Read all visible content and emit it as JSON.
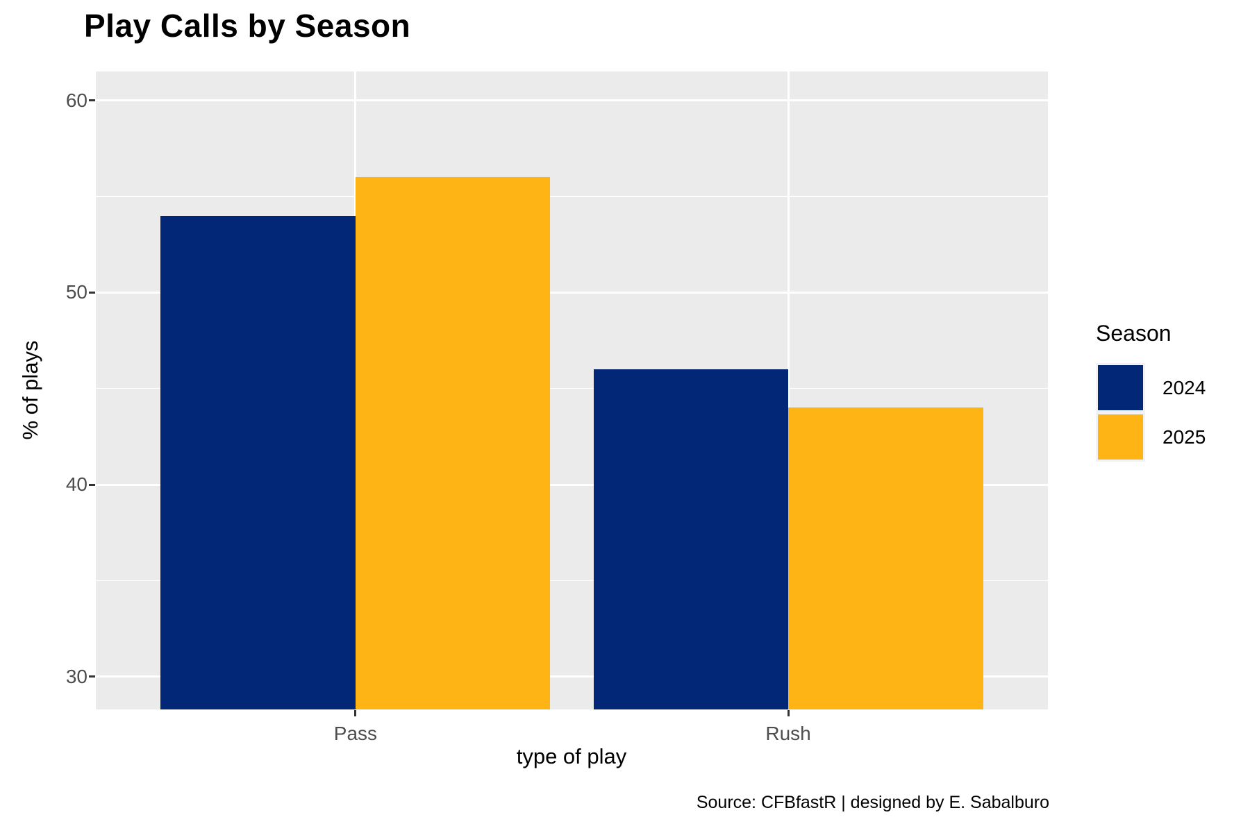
{
  "title": "Play Calls by Season",
  "caption": "Source: CFBfastR | designed by E. Sabalburo",
  "chart_data": {
    "type": "bar",
    "title": "Play Calls by Season",
    "xlabel": "type of play",
    "ylabel": "% of plays",
    "categories": [
      "Pass",
      "Rush"
    ],
    "series": [
      {
        "name": "2024",
        "color": "#022776",
        "values": [
          54,
          46
        ]
      },
      {
        "name": "2025",
        "color": "#FDB414",
        "values": [
          56,
          44
        ]
      }
    ],
    "ylim": [
      28.3,
      61.5
    ],
    "y_major_ticks": [
      30,
      40,
      50,
      60
    ],
    "y_minor_ticks": [
      35,
      45,
      55
    ],
    "bar_group_width": 0.9,
    "grid": true,
    "legend_title": "Season",
    "legend_position": "right",
    "colors": {
      "panel_bg": "#EBEBEB",
      "grid": "#FFFFFF",
      "tick_mark": "#333333",
      "tick_label": "#4D4D4D"
    }
  }
}
